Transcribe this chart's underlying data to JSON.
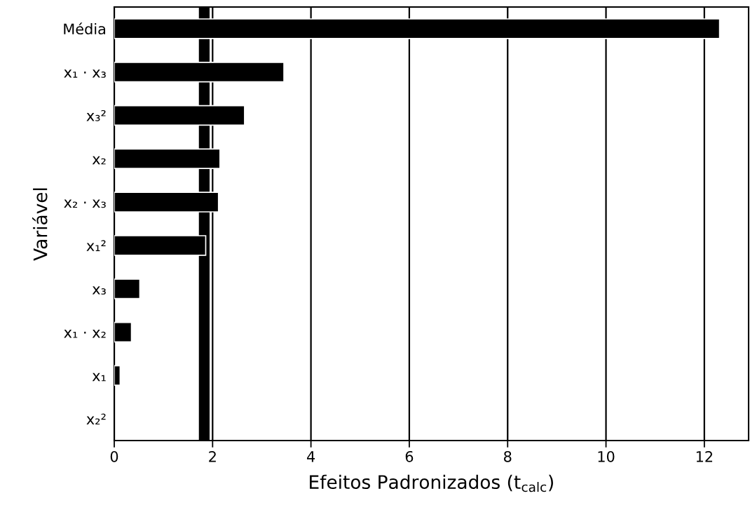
{
  "chart_data": {
    "type": "bar",
    "orientation": "horizontal",
    "xlabel": "Efeitos Padronizados (t$_{calc}$)",
    "ylabel": "Variável",
    "categories": [
      "Média",
      "x₁ · x₃",
      "x₃²",
      "x₂",
      "x₂ · x₃",
      "x₁²",
      "x₃",
      "x₁ · x₂",
      "x₁",
      "x₂²"
    ],
    "values": [
      12.31,
      3.45,
      2.65,
      2.15,
      2.12,
      1.86,
      0.52,
      0.35,
      0.12,
      0
    ],
    "color": "#000000",
    "xlim": [
      0,
      12.9
    ],
    "xticks": [
      0,
      2,
      4,
      6,
      8,
      10,
      12
    ],
    "grid": "x",
    "legend": false,
    "ref_lines": [
      {
        "axis": "x",
        "value": 1.83,
        "color": "#000000"
      }
    ]
  }
}
